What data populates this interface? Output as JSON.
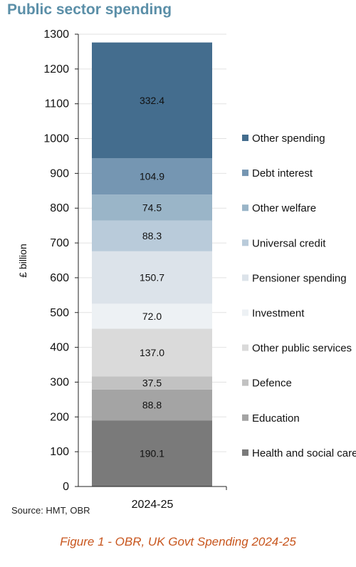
{
  "header": {
    "title": "Public sector spending"
  },
  "chart_data": {
    "type": "bar",
    "stacked": true,
    "categories": [
      "2024-25"
    ],
    "ylabel": "£ billion",
    "xlabel": "",
    "ylim": [
      0,
      1300
    ],
    "yticks": [
      0,
      100,
      200,
      300,
      400,
      500,
      600,
      700,
      800,
      900,
      1000,
      1100,
      1200,
      1300
    ],
    "legend_position": "right",
    "grid": true,
    "series": [
      {
        "name": "Health and social care",
        "values": [
          190.1
        ],
        "label": "190.1",
        "color": "#7a7a7a"
      },
      {
        "name": "Education",
        "values": [
          88.8
        ],
        "label": "88.8",
        "color": "#a4a4a4"
      },
      {
        "name": "Defence",
        "values": [
          37.5
        ],
        "label": "37.5",
        "color": "#c2c2c2"
      },
      {
        "name": "Other public services",
        "values": [
          137.0
        ],
        "label": "137.0",
        "color": "#dadada"
      },
      {
        "name": "Investment",
        "values": [
          72.0
        ],
        "label": "72.0",
        "color": "#edf1f4"
      },
      {
        "name": "Pensioner spending",
        "values": [
          150.7
        ],
        "label": "150.7",
        "color": "#dce3ea"
      },
      {
        "name": "Universal credit",
        "values": [
          88.3
        ],
        "label": "88.3",
        "color": "#b9cbda"
      },
      {
        "name": "Other welfare",
        "values": [
          74.5
        ],
        "label": "74.5",
        "color": "#9ab5c8"
      },
      {
        "name": "Debt interest",
        "values": [
          104.9
        ],
        "label": "104.9",
        "color": "#7596b2"
      },
      {
        "name": "Other spending",
        "values": [
          332.4
        ],
        "label": "332.4",
        "color": "#446d8e"
      }
    ]
  },
  "footer": {
    "source": "Source: HMT, OBR",
    "caption": "Figure 1 - OBR, UK Govt Spending 2024-25"
  }
}
